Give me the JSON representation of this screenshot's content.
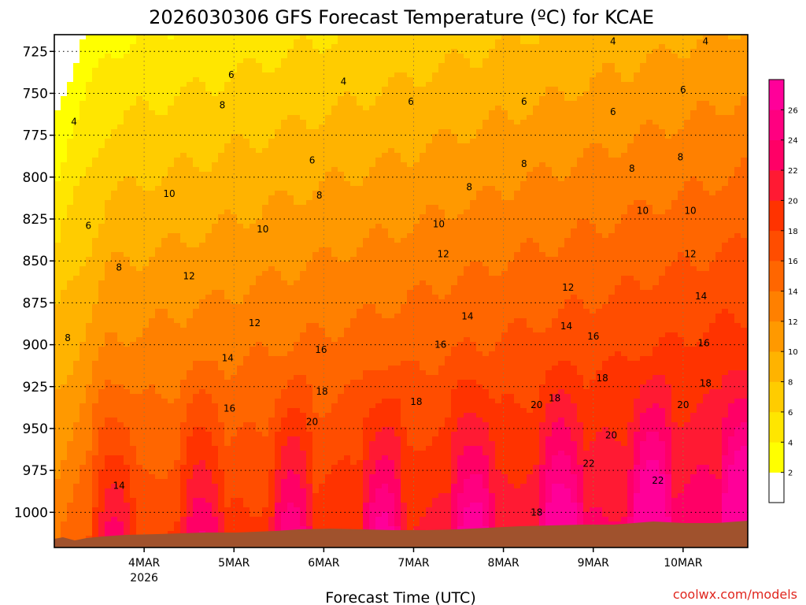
{
  "chart_data": {
    "type": "filled-contour",
    "title": "2026030306 GFS Forecast Temperature (ºC) for KCAE",
    "xlabel": "Forecast Time (UTC)",
    "ylabel": "",
    "credit": "coolwx.com/models",
    "x_ticks": [
      {
        "label": "4MAR",
        "sub": "2026",
        "day": 1
      },
      {
        "label": "5MAR",
        "sub": "",
        "day": 2
      },
      {
        "label": "6MAR",
        "sub": "",
        "day": 3
      },
      {
        "label": "7MAR",
        "sub": "",
        "day": 4
      },
      {
        "label": "8MAR",
        "sub": "",
        "day": 5
      },
      {
        "label": "9MAR",
        "sub": "",
        "day": 6
      },
      {
        "label": "10MAR",
        "sub": "",
        "day": 7
      }
    ],
    "x_range_days": [
      0.0,
      7.72
    ],
    "y_ticks": [
      {
        "label": "725",
        "p": 725
      },
      {
        "label": "750",
        "p": 750
      },
      {
        "label": "775",
        "p": 775
      },
      {
        "label": "800",
        "p": 800
      },
      {
        "label": "825",
        "p": 825
      },
      {
        "label": "850",
        "p": 850
      },
      {
        "label": "875",
        "p": 875
      },
      {
        "label": "900",
        "p": 900
      },
      {
        "label": "925",
        "p": 925
      },
      {
        "label": "950",
        "p": 950
      },
      {
        "label": "975",
        "p": 975
      },
      {
        "label": "1000",
        "p": 1000
      }
    ],
    "y_range_hpa": [
      715,
      1021
    ],
    "colorbar": {
      "levels": [
        0,
        2,
        4,
        6,
        8,
        10,
        12,
        14,
        16,
        18,
        20,
        22,
        24,
        26,
        28
      ],
      "labels": [
        "2",
        "4",
        "6",
        "8",
        "10",
        "12",
        "14",
        "16",
        "18",
        "20",
        "22",
        "24",
        "26"
      ],
      "colors": [
        "#ffffff",
        "#ffff00",
        "#ffe600",
        "#ffcc00",
        "#ffb300",
        "#ff9900",
        "#ff8000",
        "#ff6600",
        "#ff4d00",
        "#ff3300",
        "#ff1a33",
        "#ff0066",
        "#ff0080",
        "#ff0099"
      ]
    },
    "contour_labels": [
      {
        "text": "4",
        "day": 0.22,
        "p": 767
      },
      {
        "text": "6",
        "day": 1.97,
        "p": 739
      },
      {
        "text": "8",
        "day": 1.87,
        "p": 757
      },
      {
        "text": "10",
        "day": 1.28,
        "p": 810
      },
      {
        "text": "10",
        "day": 2.32,
        "p": 831
      },
      {
        "text": "6",
        "day": 0.38,
        "p": 829
      },
      {
        "text": "8",
        "day": 0.72,
        "p": 854
      },
      {
        "text": "8",
        "day": 0.15,
        "p": 896
      },
      {
        "text": "12",
        "day": 1.5,
        "p": 859
      },
      {
        "text": "12",
        "day": 2.23,
        "p": 887
      },
      {
        "text": "14",
        "day": 1.93,
        "p": 908
      },
      {
        "text": "16",
        "day": 1.95,
        "p": 938
      },
      {
        "text": "14",
        "day": 0.72,
        "p": 984
      },
      {
        "text": "4",
        "day": 3.22,
        "p": 743
      },
      {
        "text": "6",
        "day": 2.87,
        "p": 790
      },
      {
        "text": "8",
        "day": 2.95,
        "p": 811
      },
      {
        "text": "16",
        "day": 2.97,
        "p": 903
      },
      {
        "text": "18",
        "day": 2.98,
        "p": 928
      },
      {
        "text": "20",
        "day": 2.87,
        "p": 946
      },
      {
        "text": "6",
        "day": 3.97,
        "p": 755
      },
      {
        "text": "10",
        "day": 4.28,
        "p": 828
      },
      {
        "text": "12",
        "day": 4.33,
        "p": 846
      },
      {
        "text": "16",
        "day": 4.3,
        "p": 900
      },
      {
        "text": "18",
        "day": 4.03,
        "p": 934
      },
      {
        "text": "8",
        "day": 4.62,
        "p": 806
      },
      {
        "text": "14",
        "day": 4.6,
        "p": 883
      },
      {
        "text": "6",
        "day": 5.23,
        "p": 755
      },
      {
        "text": "8",
        "day": 5.23,
        "p": 792
      },
      {
        "text": "12",
        "day": 5.72,
        "p": 866
      },
      {
        "text": "14",
        "day": 5.7,
        "p": 889
      },
      {
        "text": "16",
        "day": 6.0,
        "p": 895
      },
      {
        "text": "18",
        "day": 6.1,
        "p": 920
      },
      {
        "text": "18",
        "day": 5.57,
        "p": 932
      },
      {
        "text": "20",
        "day": 5.37,
        "p": 936
      },
      {
        "text": "20",
        "day": 6.2,
        "p": 954
      },
      {
        "text": "22",
        "day": 5.95,
        "p": 971
      },
      {
        "text": "18",
        "day": 5.37,
        "p": 1000
      },
      {
        "text": "4",
        "day": 6.22,
        "p": 719
      },
      {
        "text": "6",
        "day": 6.22,
        "p": 761
      },
      {
        "text": "8",
        "day": 6.43,
        "p": 795
      },
      {
        "text": "10",
        "day": 6.55,
        "p": 820
      },
      {
        "text": "6",
        "day": 7.0,
        "p": 748
      },
      {
        "text": "8",
        "day": 6.97,
        "p": 788
      },
      {
        "text": "10",
        "day": 7.08,
        "p": 820
      },
      {
        "text": "12",
        "day": 7.08,
        "p": 846
      },
      {
        "text": "14",
        "day": 7.2,
        "p": 871
      },
      {
        "text": "16",
        "day": 7.23,
        "p": 899
      },
      {
        "text": "18",
        "day": 7.25,
        "p": 923
      },
      {
        "text": "20",
        "day": 7.0,
        "p": 936
      },
      {
        "text": "22",
        "day": 6.72,
        "p": 981
      },
      {
        "text": "4",
        "day": 7.25,
        "p": 719
      }
    ]
  }
}
